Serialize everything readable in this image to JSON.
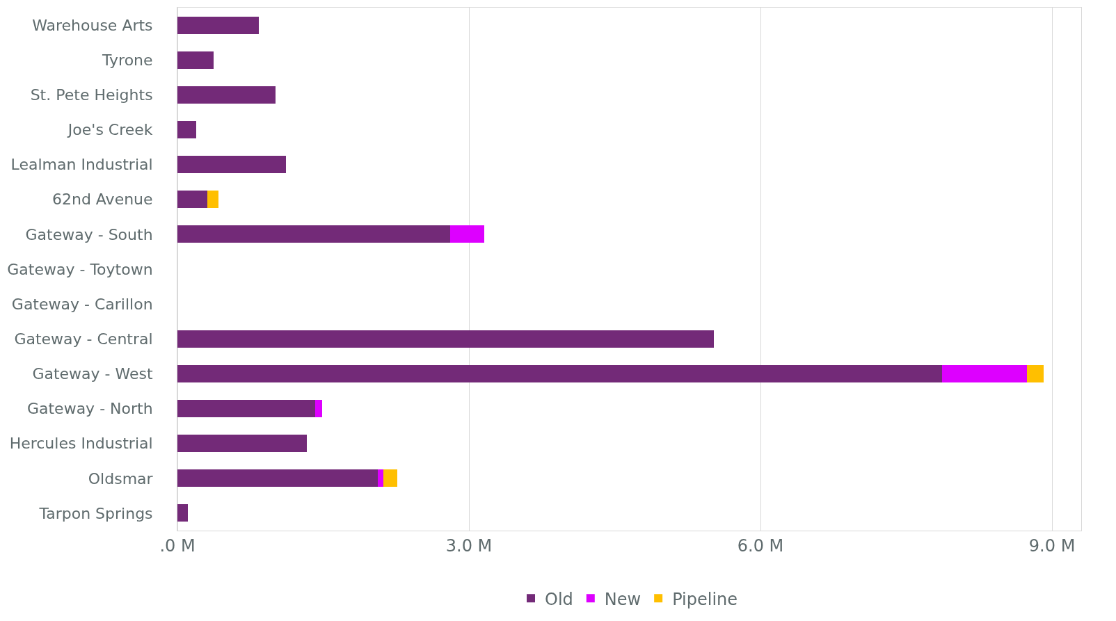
{
  "chart_data": {
    "type": "bar",
    "orientation": "horizontal",
    "stacked": true,
    "categories": [
      "Warehouse Arts",
      "Tyrone",
      "St. Pete Heights",
      "Joe's Creek",
      "Lealman Industrial",
      "62nd Avenue",
      "Gateway - South",
      "Gateway - Toytown",
      "Gateway - Carillon",
      "Gateway - Central",
      "Gateway - West",
      "Gateway - North",
      "Hercules Industrial",
      "Oldsmar",
      "Tarpon Springs"
    ],
    "series": [
      {
        "name": "Old",
        "color": "#732a78",
        "values": [
          0.84,
          0.37,
          1.01,
          0.19,
          1.12,
          0.31,
          2.81,
          null,
          null,
          5.52,
          7.87,
          1.42,
          1.33,
          2.06,
          0.11
        ]
      },
      {
        "name": "New",
        "color": "#dd00ff",
        "values": [
          null,
          null,
          null,
          null,
          null,
          null,
          0.35,
          null,
          null,
          null,
          0.87,
          0.07,
          null,
          0.06,
          null
        ]
      },
      {
        "name": "Pipeline",
        "color": "#ffbf00",
        "values": [
          null,
          null,
          null,
          null,
          null,
          0.11,
          null,
          null,
          null,
          null,
          0.17,
          null,
          null,
          0.14,
          null
        ]
      }
    ],
    "xlim": [
      0,
      9.3
    ],
    "xticks": [
      {
        "value": 0,
        "label": ".0 M"
      },
      {
        "value": 3,
        "label": "3.0 M"
      },
      {
        "value": 6,
        "label": "6.0 M"
      },
      {
        "value": 9,
        "label": "9.0 M"
      }
    ],
    "grid": "x",
    "legend": "bottom"
  }
}
